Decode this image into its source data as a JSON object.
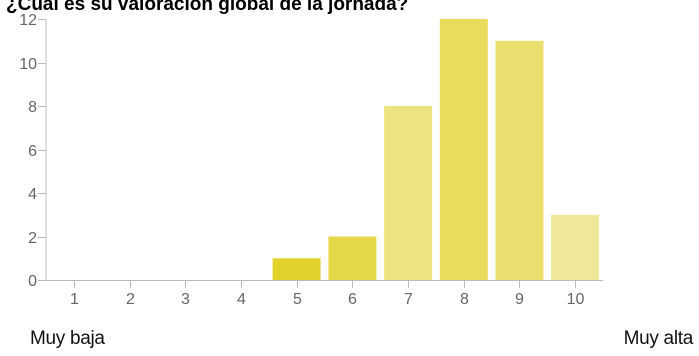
{
  "chart_data": {
    "type": "bar",
    "title": "¿Cuál es su valoración global de la jornada?",
    "categories": [
      "1",
      "2",
      "3",
      "4",
      "5",
      "6",
      "7",
      "8",
      "9",
      "10"
    ],
    "values": [
      0,
      0,
      0,
      0,
      1,
      2,
      8,
      12,
      11,
      3
    ],
    "ylim": [
      0,
      12
    ],
    "yticks": [
      0,
      2,
      4,
      6,
      8,
      10,
      12
    ],
    "grid": false,
    "bar_colors": [
      "#eae06e",
      "#eae06e",
      "#eae06e",
      "#eae06e",
      "#e4d22c",
      "#e5d94a",
      "#ede481",
      "#e9dc5c",
      "#ebe06f",
      "#efe898"
    ],
    "axis_color": "#bbbbbb",
    "tick_label_color": "#666666"
  },
  "scale": {
    "low_label": "Muy baja",
    "high_label": "Muy alta"
  }
}
